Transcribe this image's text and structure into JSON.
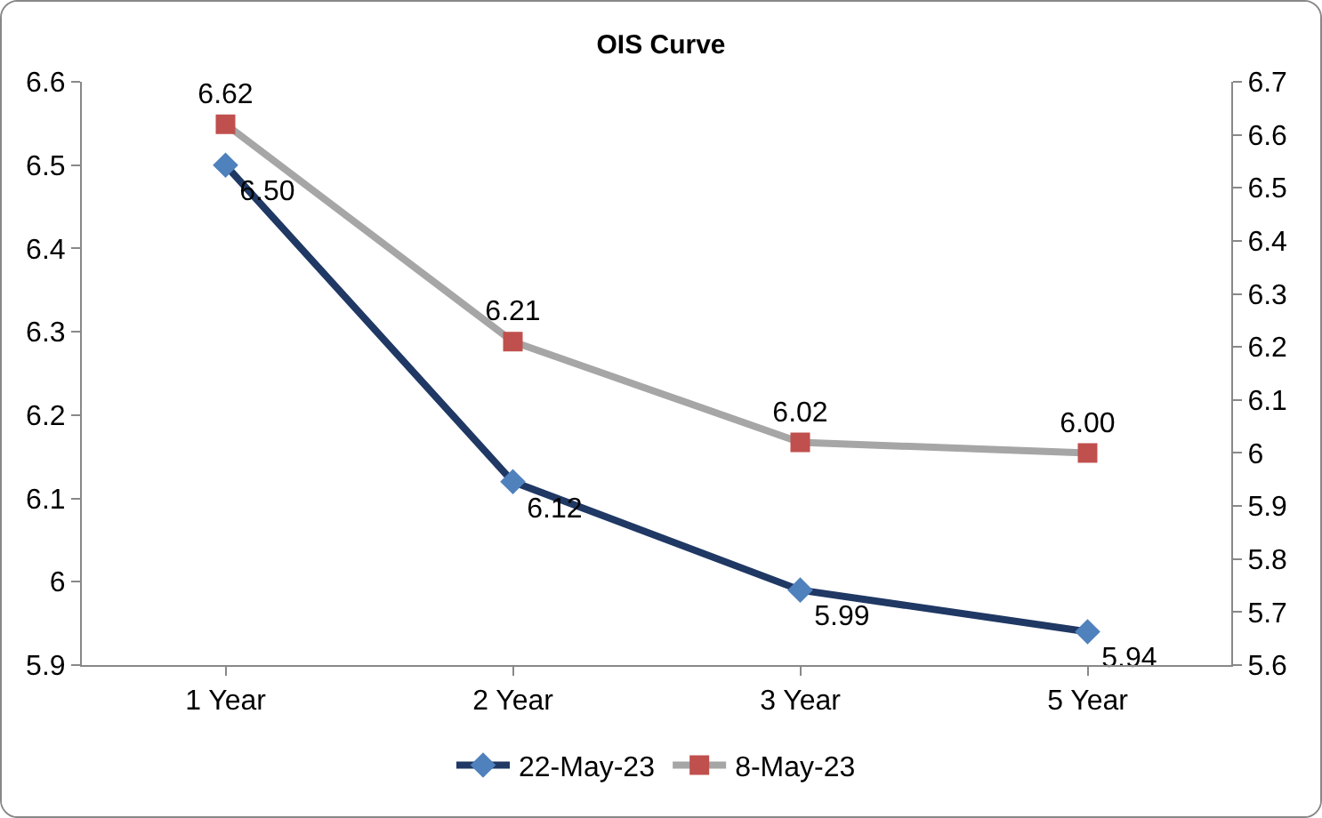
{
  "chart_data": {
    "type": "line",
    "title": "OIS Curve",
    "categories": [
      "1 Year",
      "2 Year",
      "3 Year",
      "5 Year"
    ],
    "series": [
      {
        "name": "22-May-23",
        "color": "#1f3864",
        "colors": [
          "#4f81bd",
          "#4f81bd",
          "#4f81bd",
          "#4f81bd"
        ],
        "marker": "diamond",
        "values": [
          6.5,
          6.12,
          5.99,
          5.94
        ],
        "value_labels": [
          "6.50",
          "6.12",
          "5.99",
          "5.94"
        ]
      },
      {
        "name": "8-May-23",
        "color": "#a6a6a6",
        "colors": [
          "#c0504d",
          "#c0504d",
          "#c0504d",
          "#c0504d"
        ],
        "marker": "square",
        "axis": "y2",
        "values": [
          6.62,
          6.21,
          6.02,
          6.0
        ],
        "value_labels": [
          "6.62",
          "6.21",
          "6.02",
          "6.00"
        ]
      }
    ],
    "ylim": [
      5.9,
      6.6
    ],
    "yticks": [
      5.9,
      6,
      6.1,
      6.2,
      6.3,
      6.4,
      6.5,
      6.6
    ],
    "y2lim": [
      5.6,
      6.7
    ],
    "y2ticks": [
      5.6,
      5.7,
      5.8,
      5.9,
      6,
      6.1,
      6.2,
      6.3,
      6.4,
      6.5,
      6.6,
      6.7
    ],
    "grid": false,
    "legend": "bottom",
    "line_style": "solid"
  }
}
